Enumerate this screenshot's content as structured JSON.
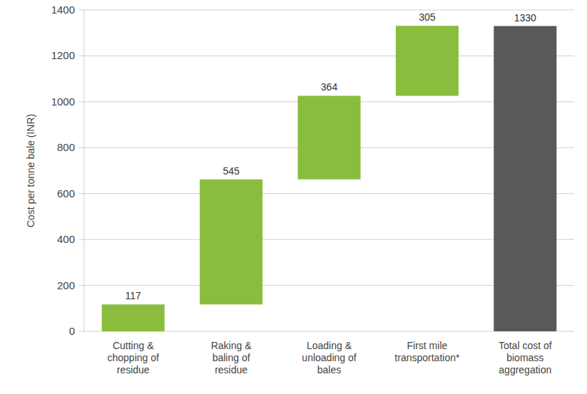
{
  "chart_data": {
    "type": "waterfall",
    "y_label": "Cost per tonne bale (INR)",
    "categories": [
      "Cutting &\nchopping of\nresidue",
      "Raking &\nbaling of\nresidue",
      "Loading &\nunloading of\nbales",
      "First mile\ntransportation*",
      "Total cost of\nbiomass\naggregation"
    ],
    "series": [
      {
        "type": "waterfall",
        "color": "#8abd3e",
        "values": [
          117,
          545,
          364,
          305,
          null
        ]
      },
      {
        "type": "bar",
        "color": "#58595b",
        "values": [
          null,
          null,
          null,
          null,
          1330
        ]
      }
    ],
    "ylim": [
      0,
      1400
    ],
    "yticks": [
      0,
      200,
      400,
      600,
      800,
      1000,
      1200,
      1400
    ],
    "grid": true,
    "data_labels": true
  }
}
